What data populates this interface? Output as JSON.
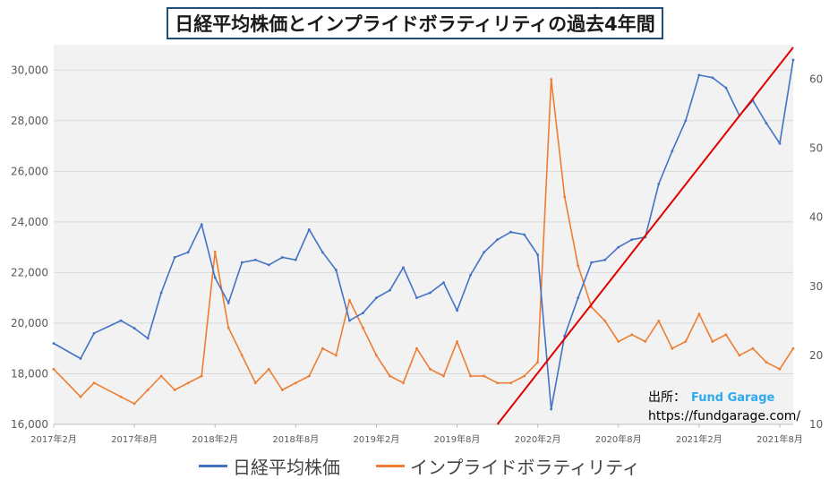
{
  "title": "日経平均株価とインプライドボラティリティの過去4年間",
  "source": {
    "label": "出所：",
    "brand": "Fund Garage",
    "url": "https://fundgarage.com/"
  },
  "colors": {
    "nikkei": "#4472c4",
    "vi": "#ed7d31",
    "trend": "#e00000",
    "grid": "#d9d9d9",
    "plot_bg": "#f2f2f2"
  },
  "chart_data": {
    "type": "line",
    "x_ticks": [
      "2017年2月",
      "2017年8月",
      "2018年2月",
      "2018年8月",
      "2019年2月",
      "2019年8月",
      "2020年2月",
      "2020年8月",
      "2021年2月",
      "2021年8月"
    ],
    "y_left": {
      "lim": [
        16000,
        31000
      ],
      "ticks": [
        "16,000",
        "18,000",
        "20,000",
        "22,000",
        "24,000",
        "26,000",
        "28,000",
        "30,000"
      ]
    },
    "y_right": {
      "lim": [
        10,
        65
      ],
      "ticks": [
        "10",
        "20",
        "30",
        "40",
        "50",
        "60"
      ]
    },
    "grid": true,
    "legend_position": "bottom",
    "series": [
      {
        "name": "日経平均株価",
        "axis": "left",
        "x": [
          "2017-02",
          "2017-04",
          "2017-05",
          "2017-07",
          "2017-08",
          "2017-09",
          "2017-10",
          "2017-11",
          "2017-12",
          "2018-01",
          "2018-02",
          "2018-03",
          "2018-04",
          "2018-05",
          "2018-06",
          "2018-07",
          "2018-08",
          "2018-09",
          "2018-10",
          "2018-11",
          "2018-12",
          "2019-01",
          "2019-02",
          "2019-03",
          "2019-04",
          "2019-05",
          "2019-06",
          "2019-07",
          "2019-08",
          "2019-09",
          "2019-10",
          "2019-11",
          "2019-12",
          "2020-01",
          "2020-02",
          "2020-03",
          "2020-04",
          "2020-05",
          "2020-06",
          "2020-07",
          "2020-08",
          "2020-09",
          "2020-10",
          "2020-11",
          "2020-12",
          "2021-01",
          "2021-02",
          "2021-03",
          "2021-04",
          "2021-05",
          "2021-06",
          "2021-07",
          "2021-08",
          "2021-09"
        ],
        "y": [
          19200,
          18600,
          19600,
          20100,
          19800,
          19400,
          21200,
          22600,
          22800,
          23900,
          21800,
          20800,
          22400,
          22500,
          22300,
          22600,
          22500,
          23700,
          22800,
          22100,
          20100,
          20400,
          21000,
          21300,
          22200,
          21000,
          21200,
          21600,
          20500,
          21900,
          22800,
          23300,
          23600,
          23500,
          22700,
          16600,
          19500,
          21000,
          22400,
          22500,
          23000,
          23300,
          23400,
          25500,
          26800,
          28000,
          29800,
          29700,
          29300,
          28200,
          28800,
          27900,
          27100,
          30400
        ]
      },
      {
        "name": "インプライドボラティリティ",
        "axis": "right",
        "x": [
          "2017-02",
          "2017-04",
          "2017-05",
          "2017-07",
          "2017-08",
          "2017-09",
          "2017-10",
          "2017-11",
          "2017-12",
          "2018-01",
          "2018-02",
          "2018-03",
          "2018-04",
          "2018-05",
          "2018-06",
          "2018-07",
          "2018-08",
          "2018-09",
          "2018-10",
          "2018-11",
          "2018-12",
          "2019-01",
          "2019-02",
          "2019-03",
          "2019-04",
          "2019-05",
          "2019-06",
          "2019-07",
          "2019-08",
          "2019-09",
          "2019-10",
          "2019-11",
          "2019-12",
          "2020-01",
          "2020-02",
          "2020-03",
          "2020-04",
          "2020-05",
          "2020-06",
          "2020-07",
          "2020-08",
          "2020-09",
          "2020-10",
          "2020-11",
          "2020-12",
          "2021-01",
          "2021-02",
          "2021-03",
          "2021-04",
          "2021-05",
          "2021-06",
          "2021-07",
          "2021-08",
          "2021-09"
        ],
        "y": [
          18,
          14,
          16,
          14,
          13,
          15,
          17,
          15,
          16,
          17,
          35,
          24,
          20,
          16,
          18,
          15,
          16,
          17,
          21,
          20,
          28,
          24,
          20,
          17,
          16,
          21,
          18,
          17,
          22,
          17,
          17,
          16,
          16,
          17,
          19,
          60,
          43,
          33,
          27,
          25,
          22,
          23,
          22,
          25,
          21,
          22,
          26,
          22,
          23,
          20,
          21,
          19,
          18,
          21
        ]
      }
    ],
    "annotations": [
      {
        "type": "trendline",
        "from": {
          "x": "2019-11",
          "y": 16000
        },
        "to": {
          "x": "2021-09",
          "y": 30900
        }
      }
    ]
  }
}
